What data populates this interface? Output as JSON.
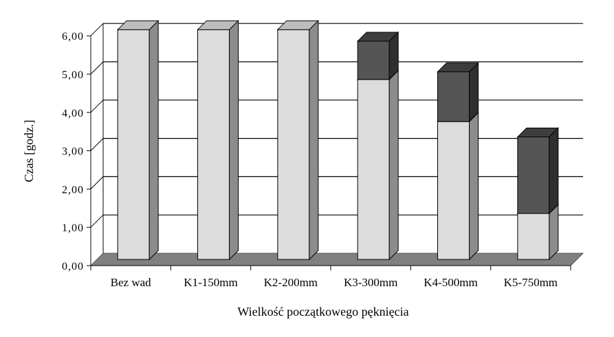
{
  "chart_data": {
    "type": "bar",
    "stacked": true,
    "three_d": true,
    "categories": [
      "Bez wad",
      "K1-150mm",
      "K2-200mm",
      "K3-300mm",
      "K4-500mm",
      "K5-750mm"
    ],
    "series": [
      {
        "values": [
          6.0,
          6.0,
          6.0,
          4.7,
          3.6,
          1.2
        ],
        "color": "#dcdcdc"
      },
      {
        "values": [
          0.0,
          0.0,
          0.0,
          1.0,
          1.3,
          2.0
        ],
        "color": "#555555"
      }
    ],
    "xlabel": "Wielkość początkowego pęknięcia",
    "ylabel": "Czas [godz.]",
    "ylim": [
      0,
      6
    ],
    "yticks": [
      "0,00",
      "1,00",
      "2,00",
      "3,00",
      "4,00",
      "5,00",
      "6,00"
    ],
    "grid": true,
    "legend": "none",
    "floor_color": "#808080"
  }
}
